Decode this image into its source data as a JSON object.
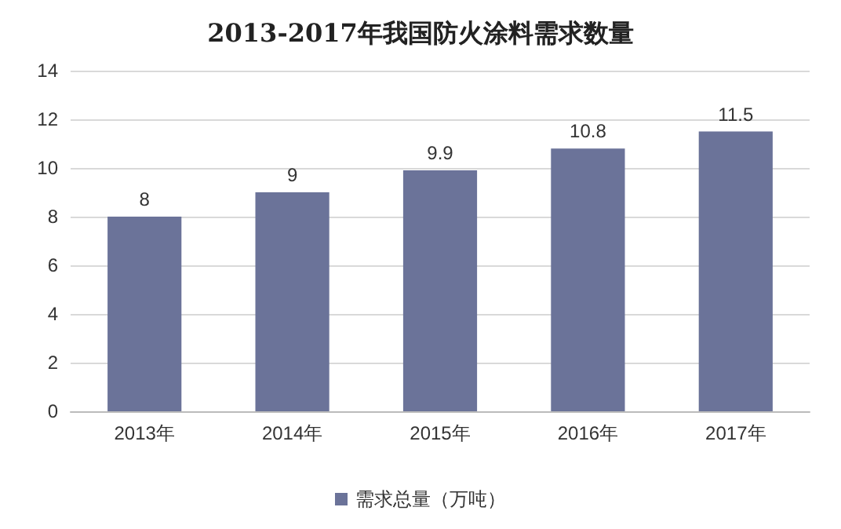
{
  "chart_data": {
    "type": "bar",
    "title": "2013-2017年我国防火涂料需求数量",
    "categories": [
      "2013年",
      "2014年",
      "2015年",
      "2016年",
      "2017年"
    ],
    "series": [
      {
        "name": "需求总量（万吨）",
        "color": "#6b7399",
        "values": [
          8,
          9,
          9.9,
          10.8,
          11.5
        ]
      }
    ],
    "ylim": [
      0,
      14
    ],
    "yticks": [
      0,
      2,
      4,
      6,
      8,
      10,
      12,
      14
    ],
    "grid": "y",
    "legend": "bottom",
    "data_labels": true
  }
}
